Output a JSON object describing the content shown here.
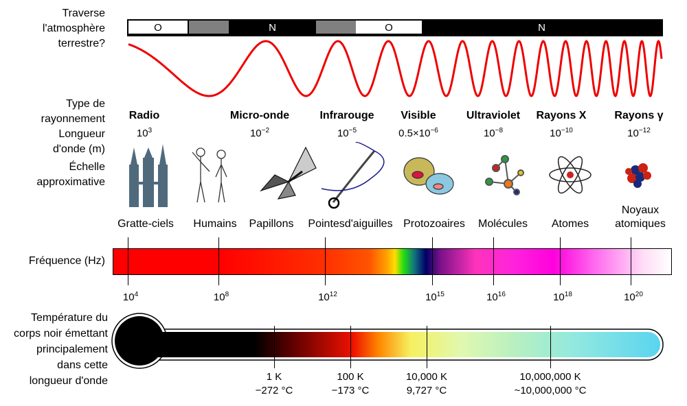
{
  "labels": {
    "atmosphere": [
      "Traverse",
      "l'atmosphère",
      "terrestre?"
    ],
    "type": [
      "Type de",
      "rayonnement"
    ],
    "wavelength": [
      "Longueur",
      "d'onde (m)"
    ],
    "scale": [
      "Échelle",
      "approximative"
    ],
    "frequency": "Fréquence (Hz)",
    "temperature": [
      "Température du",
      "corps noir émettant",
      "principalement",
      "dans cette",
      "longueur d'onde"
    ]
  },
  "atmosphere_segments": [
    {
      "text": "O",
      "color": "#ffffff"
    },
    {
      "text": "",
      "color": "#808080"
    },
    {
      "text": "N",
      "color": "#000000"
    },
    {
      "text": "",
      "color": "#808080"
    },
    {
      "text": "O",
      "color": "#ffffff"
    },
    {
      "text": "N",
      "color": "#000000"
    }
  ],
  "wave_color": "#ee0000",
  "bands": [
    {
      "type": "Radio",
      "base": "10",
      "exp": "3",
      "object": "Gratte-ciels",
      "icon": "skyscrapers-icon"
    },
    {
      "type": "Micro-onde",
      "base": "10",
      "exp": "−2",
      "object": "Humains",
      "icon": "humans-icon"
    },
    {
      "type": "Infrarouge",
      "base": "10",
      "exp": "−5",
      "object": "Papillons",
      "icon": "butterfly-icon"
    },
    {
      "type": "Visible",
      "base": "0.5×10",
      "exp": "−6",
      "object": "Pointesd'aiguilles",
      "icon": "needle-icon"
    },
    {
      "type": "Ultraviolet",
      "base": "10",
      "exp": "−8",
      "object": "Protozoaires",
      "icon": "protozoa-icon"
    },
    {
      "type": "Rayons X",
      "base": "10",
      "exp": "−10",
      "object": "Molécules",
      "icon": "molecule-icon"
    },
    {
      "type": "Rayons γ",
      "base": "10",
      "exp": "−12",
      "object": "Atomes",
      "icon": "atom-icon"
    },
    {
      "object": "Noyaux atomiques",
      "icon": "nucleus-icon"
    }
  ],
  "frequency_ticks": [
    {
      "base": "10",
      "exp": "4"
    },
    {
      "base": "10",
      "exp": "8"
    },
    {
      "base": "10",
      "exp": "12"
    },
    {
      "base": "10",
      "exp": "15"
    },
    {
      "base": "10",
      "exp": "16"
    },
    {
      "base": "10",
      "exp": "18"
    },
    {
      "base": "10",
      "exp": "20"
    }
  ],
  "temperature_ticks": [
    {
      "k": "1 K",
      "c": "−272 °C"
    },
    {
      "k": "100 K",
      "c": "−173 °C"
    },
    {
      "k": "10,000 K",
      "c": "9,727 °C"
    },
    {
      "k": "10,000,000 K",
      "c": "~10,000,000 °C"
    }
  ]
}
